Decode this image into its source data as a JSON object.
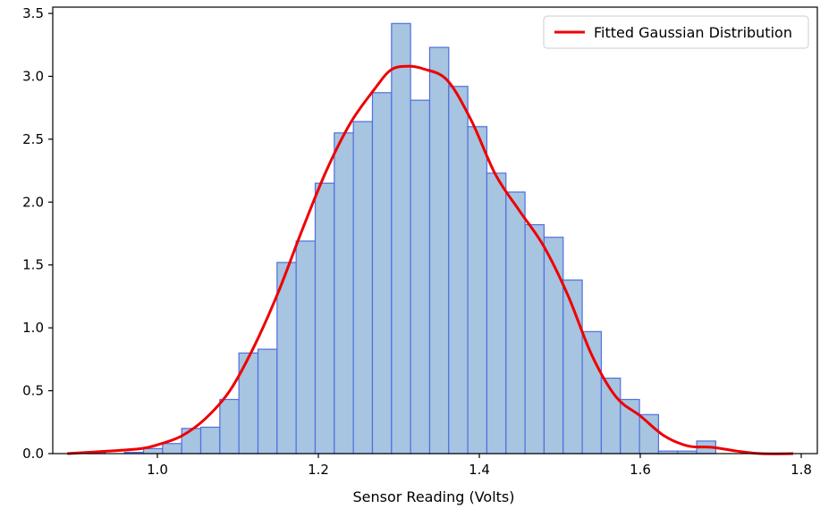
{
  "chart_data": {
    "type": "bar",
    "title": "",
    "xlabel": "Sensor Reading (Volts)",
    "ylabel": "",
    "xlim": [
      0.87,
      1.82
    ],
    "ylim": [
      0,
      3.55
    ],
    "grid": false,
    "legend_position": "top-right",
    "x_ticks": [
      1.0,
      1.2,
      1.4,
      1.6,
      1.8
    ],
    "x_tick_labels": [
      "1.0",
      "1.2",
      "1.4",
      "1.6",
      "1.8"
    ],
    "y_ticks": [
      0.0,
      0.5,
      1.0,
      1.5,
      2.0,
      2.5,
      3.0,
      3.5
    ],
    "y_tick_labels": [
      "0.0",
      "0.5",
      "1.0",
      "1.5",
      "2.0",
      "2.5",
      "3.0",
      "3.5"
    ],
    "histogram": {
      "name": "",
      "bin_edges": [
        0.888,
        0.9117,
        0.9354,
        0.9591,
        0.9828,
        1.0065,
        1.0302,
        1.0539,
        1.0776,
        1.1013,
        1.125,
        1.1487,
        1.1724,
        1.1961,
        1.2198,
        1.2435,
        1.2672,
        1.2909,
        1.3146,
        1.3383,
        1.362,
        1.3857,
        1.4094,
        1.4331,
        1.4568,
        1.4805,
        1.5042,
        1.5279,
        1.5516,
        1.5753,
        1.599,
        1.6227,
        1.6464,
        1.6701,
        1.6938,
        1.7175
      ],
      "values": [
        0.0,
        0.01,
        0.0,
        0.01,
        0.04,
        0.08,
        0.2,
        0.21,
        0.43,
        0.8,
        0.83,
        1.52,
        1.69,
        2.15,
        2.55,
        2.64,
        2.87,
        3.42,
        2.81,
        3.23,
        2.92,
        2.6,
        2.23,
        2.08,
        1.82,
        1.72,
        1.38,
        0.97,
        0.6,
        0.43,
        0.31,
        0.02,
        0.02,
        0.1,
        0.0
      ],
      "fill_color": "#a7c4e0",
      "edge_color": "#4f6fe0"
    },
    "series": [
      {
        "name": "Fitted Gaussian Distribution",
        "type": "line",
        "color": "#ee0000",
        "x": [
          0.888,
          0.94,
          0.98,
          1.0,
          1.03,
          1.06,
          1.09,
          1.12,
          1.15,
          1.18,
          1.21,
          1.24,
          1.27,
          1.29,
          1.31,
          1.33,
          1.36,
          1.39,
          1.42,
          1.45,
          1.48,
          1.51,
          1.54,
          1.57,
          1.6,
          1.63,
          1.66,
          1.69,
          1.72,
          1.75,
          1.79
        ],
        "values": [
          0.0,
          0.02,
          0.04,
          0.07,
          0.14,
          0.28,
          0.5,
          0.85,
          1.28,
          1.78,
          2.25,
          2.63,
          2.9,
          3.05,
          3.08,
          3.06,
          2.97,
          2.65,
          2.22,
          1.93,
          1.65,
          1.26,
          0.78,
          0.45,
          0.3,
          0.14,
          0.06,
          0.05,
          0.02,
          0.0,
          0.0
        ]
      }
    ]
  }
}
